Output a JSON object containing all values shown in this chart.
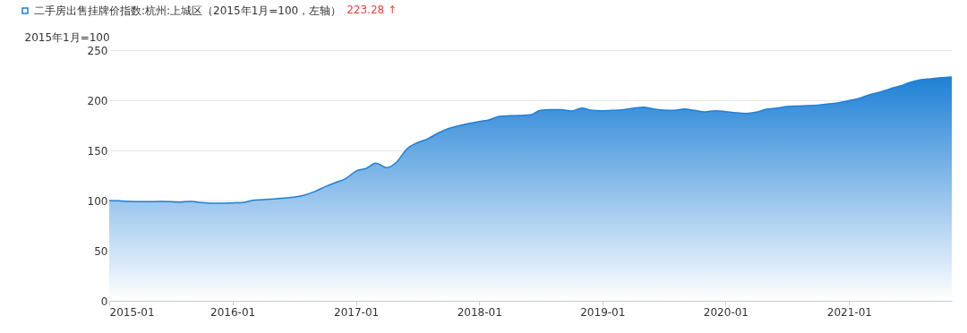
{
  "chart_data": {
    "type": "area",
    "ylabel": "2015年1月=100",
    "x": [
      "2015-01",
      "2015-02",
      "2015-03",
      "2015-04",
      "2015-05",
      "2015-06",
      "2015-07",
      "2015-08",
      "2015-09",
      "2015-10",
      "2015-11",
      "2015-12",
      "2016-01",
      "2016-02",
      "2016-03",
      "2016-04",
      "2016-05",
      "2016-06",
      "2016-07",
      "2016-08",
      "2016-09",
      "2016-10",
      "2016-11",
      "2016-12",
      "2017-01",
      "2017-02",
      "2017-03",
      "2017-04",
      "2017-05",
      "2017-06",
      "2017-07",
      "2017-08",
      "2017-09",
      "2017-10",
      "2017-11",
      "2017-12",
      "2018-01",
      "2018-02",
      "2018-03",
      "2018-04",
      "2018-05",
      "2018-06",
      "2018-07",
      "2018-08",
      "2018-09",
      "2018-10",
      "2018-11",
      "2018-12",
      "2019-01",
      "2019-02",
      "2019-03",
      "2019-04",
      "2019-05",
      "2019-06",
      "2019-07",
      "2019-08",
      "2019-09",
      "2019-10",
      "2019-11",
      "2019-12",
      "2020-01",
      "2020-02",
      "2020-03",
      "2020-04",
      "2020-05",
      "2020-06",
      "2020-07",
      "2020-08",
      "2020-09",
      "2020-10",
      "2020-11",
      "2020-12",
      "2021-01",
      "2021-02",
      "2021-03",
      "2021-04",
      "2021-05",
      "2021-06",
      "2021-07",
      "2021-08",
      "2021-09",
      "2021-10",
      "2021-11"
    ],
    "series": [
      {
        "name": "二手房出售挂牌价指数:杭州:上城区（2015年1月=100，左轴）",
        "color": "#1f80d6",
        "values": [
          100,
          99.7,
          99.1,
          98.8,
          98.8,
          99.1,
          98.8,
          98.5,
          99.1,
          97.9,
          97.3,
          97.3,
          97.6,
          97.9,
          100.3,
          100.9,
          101.5,
          102.4,
          103.3,
          105.4,
          109,
          113.7,
          117.9,
          121.8,
          129.3,
          132.2,
          137.3,
          132.8,
          138.2,
          151.6,
          157.6,
          161.5,
          167.2,
          171.6,
          174.6,
          176.7,
          178.8,
          180.6,
          183.9,
          184.5,
          184.8,
          185.4,
          189.9,
          190.7,
          190.7,
          189.3,
          192.2,
          189.9,
          189.6,
          189.9,
          190.4,
          191.9,
          193.1,
          191.3,
          190.1,
          189.9,
          191.3,
          189.9,
          188.4,
          189.6,
          188.7,
          187.5,
          186.9,
          188.1,
          191,
          192.2,
          193.7,
          194.3,
          194.6,
          195.2,
          196.4,
          197.6,
          199.7,
          202.1,
          205.4,
          208,
          211.3,
          214.3,
          217.9,
          220.5,
          221.5,
          222.5,
          223.28
        ]
      }
    ],
    "xlim": [
      "2015-01",
      "2021-11"
    ],
    "xticks": [
      "2015-01",
      "2016-01",
      "2017-01",
      "2018-01",
      "2019-01",
      "2020-01",
      "2021-01"
    ],
    "ylim": [
      0,
      250
    ],
    "yticks": [
      0,
      50,
      100,
      150,
      200,
      250
    ],
    "grid": "y",
    "legend": "top left",
    "annotations": [
      "223.28 ↑"
    ]
  }
}
